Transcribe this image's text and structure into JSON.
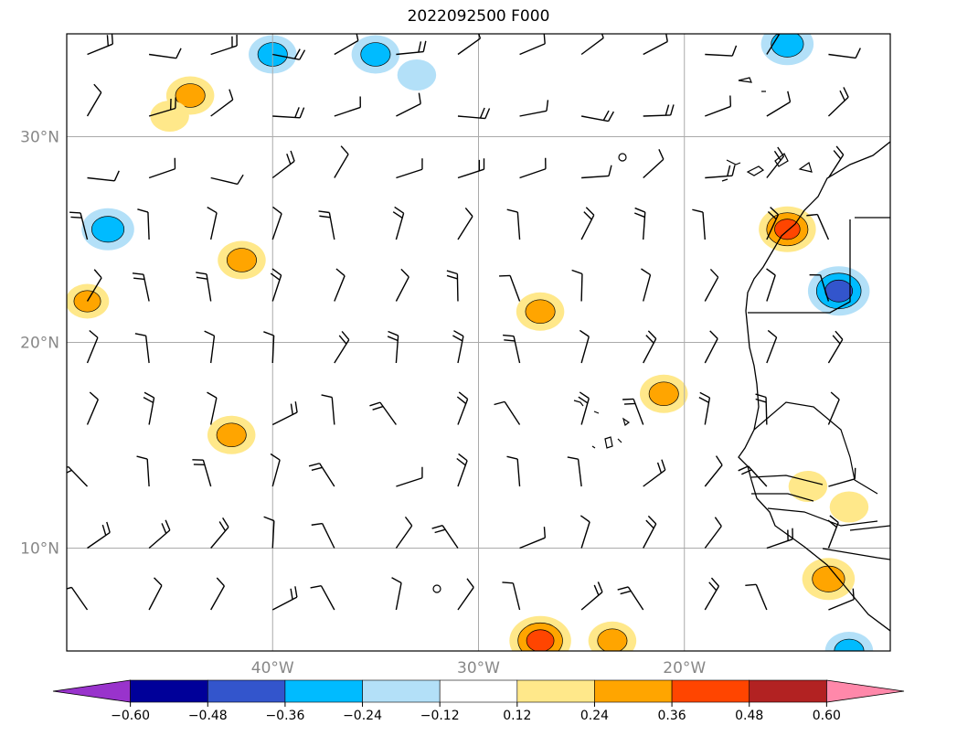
{
  "title": "2022092500 F000",
  "chart_data": {
    "type": "heatmap",
    "title": "2022092500 F000",
    "lat_ticks": [
      "30°N",
      "20°N",
      "10°N"
    ],
    "lon_ticks": [
      "40°W",
      "30°W",
      "20°W"
    ],
    "lat_values": [
      30,
      20,
      10
    ],
    "lon_values": [
      -40,
      -30,
      -20
    ],
    "lon_range": [
      -50,
      -10
    ],
    "lat_range": [
      5,
      35
    ],
    "grid": true,
    "colorbar": {
      "levels": [
        -0.6,
        -0.48,
        -0.36,
        -0.24,
        -0.12,
        0.12,
        0.24,
        0.36,
        0.48,
        0.6
      ],
      "tick_labels": [
        "−0.60",
        "−0.48",
        "−0.36",
        "−0.24",
        "−0.12",
        "0.12",
        "0.24",
        "0.36",
        "0.48",
        "0.60"
      ],
      "colors": [
        "#9933cc",
        "#000099",
        "#3355cc",
        "#00bbff",
        "#b3e0f8",
        "#ffffff",
        "#ffe88a",
        "#ffa500",
        "#ff4500",
        "#b22222",
        "#ff88aa"
      ],
      "extend": "both"
    },
    "features": [
      {
        "lon": -44.0,
        "lat": 32.0,
        "value": 0.3
      },
      {
        "lon": -45.0,
        "lat": 31.0,
        "value": 0.2
      },
      {
        "lon": -40.0,
        "lat": 34.0,
        "value": -0.3
      },
      {
        "lon": -35.0,
        "lat": 34.0,
        "value": -0.3
      },
      {
        "lon": -33.0,
        "lat": 33.0,
        "value": -0.2
      },
      {
        "lon": -48.0,
        "lat": 25.5,
        "value": -0.35
      },
      {
        "lon": -41.5,
        "lat": 24.0,
        "value": 0.3
      },
      {
        "lon": -49.0,
        "lat": 22.0,
        "value": 0.25
      },
      {
        "lon": -27.0,
        "lat": 21.5,
        "value": 0.3
      },
      {
        "lon": -21.0,
        "lat": 17.5,
        "value": 0.3
      },
      {
        "lon": -42.0,
        "lat": 15.5,
        "value": 0.3
      },
      {
        "lon": -27.0,
        "lat": 5.5,
        "value": 0.45
      },
      {
        "lon": -23.5,
        "lat": 5.5,
        "value": 0.3
      },
      {
        "lon": -15.0,
        "lat": 25.5,
        "value": 0.4
      },
      {
        "lon": -12.5,
        "lat": 22.5,
        "value": -0.45
      },
      {
        "lon": -13.0,
        "lat": 8.5,
        "value": 0.35
      },
      {
        "lon": -14.0,
        "lat": 13.0,
        "value": 0.2
      },
      {
        "lon": -12.0,
        "lat": 12.0,
        "value": 0.2
      },
      {
        "lon": -15.0,
        "lat": 34.5,
        "value": -0.35
      },
      {
        "lon": -12.0,
        "lat": 5.0,
        "value": -0.3
      }
    ]
  }
}
